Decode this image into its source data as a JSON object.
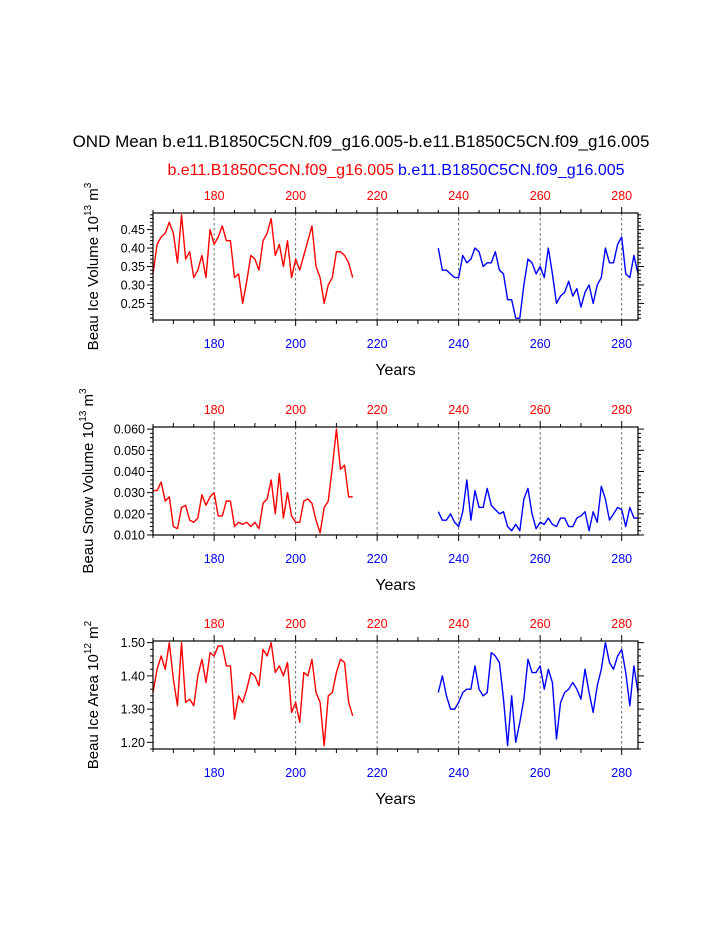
{
  "title": "OND Mean b.e11.B1850C5CN.f09_g16.005-b.e11.B1850C5CN.f09_g16.005",
  "legend": {
    "red_case": "b.e11.B1850C5CN.f09_g16.005",
    "blue_case": "b.e11.B1850C5CN.f09_g16.005"
  },
  "colors": {
    "red": "#ff0000",
    "blue": "#0000ff",
    "grid": "#555555",
    "axis": "#000000"
  },
  "chart_data": [
    {
      "type": "line",
      "id": "ice-volume",
      "ylabel": "Beau Ice Volume 10",
      "ylabel_exp": "13",
      "ylabel_unit": " m",
      "ylabel_unit_exp": "3",
      "xlabel": "Years",
      "xlim": [
        165,
        284
      ],
      "ylim": [
        0.205,
        0.495
      ],
      "yticks": [
        0.25,
        0.3,
        0.35,
        0.4,
        0.45
      ],
      "ytick_labels": [
        "0.25",
        "0.30",
        "0.35",
        "0.40",
        "0.45"
      ],
      "yminor": 0.01,
      "xticks": [
        180,
        200,
        220,
        240,
        260,
        280
      ],
      "xtick_labels": [
        "180",
        "200",
        "220",
        "240",
        "260",
        "280"
      ],
      "xminor": 5,
      "vlines": [
        180,
        200,
        220,
        240,
        260,
        280
      ],
      "series": [
        {
          "name": "b.e11.B1850C5CN.f09_g16.005 (yrs 165-214)",
          "color": "red",
          "x_start": 165,
          "values": [
            0.33,
            0.41,
            0.43,
            0.44,
            0.47,
            0.44,
            0.36,
            0.49,
            0.37,
            0.39,
            0.32,
            0.34,
            0.38,
            0.32,
            0.45,
            0.41,
            0.43,
            0.46,
            0.42,
            0.42,
            0.32,
            0.33,
            0.25,
            0.31,
            0.38,
            0.37,
            0.34,
            0.42,
            0.44,
            0.48,
            0.38,
            0.41,
            0.35,
            0.42,
            0.32,
            0.37,
            0.34,
            0.38,
            0.42,
            0.46,
            0.35,
            0.32,
            0.25,
            0.3,
            0.32,
            0.39,
            0.39,
            0.38,
            0.36,
            0.32
          ]
        },
        {
          "name": "b.e11.B1850C5CN.f09_g16.005 (yrs 235-284)",
          "color": "blue",
          "x_start": 235,
          "values": [
            0.4,
            0.34,
            0.34,
            0.33,
            0.32,
            0.32,
            0.38,
            0.36,
            0.37,
            0.4,
            0.39,
            0.35,
            0.36,
            0.36,
            0.39,
            0.34,
            0.33,
            0.26,
            0.26,
            0.21,
            0.21,
            0.3,
            0.37,
            0.36,
            0.33,
            0.35,
            0.32,
            0.4,
            0.33,
            0.25,
            0.27,
            0.28,
            0.31,
            0.27,
            0.29,
            0.24,
            0.28,
            0.3,
            0.25,
            0.3,
            0.32,
            0.4,
            0.36,
            0.36,
            0.41,
            0.43,
            0.33,
            0.32,
            0.38,
            0.33
          ]
        }
      ]
    },
    {
      "type": "line",
      "id": "snow-volume",
      "ylabel": "Beau Snow Volume 10",
      "ylabel_exp": "13",
      "ylabel_unit": " m",
      "ylabel_unit_exp": "3",
      "xlabel": "Years",
      "xlim": [
        165,
        284
      ],
      "ylim": [
        0.01,
        0.061
      ],
      "yticks": [
        0.01,
        0.02,
        0.03,
        0.04,
        0.05,
        0.06
      ],
      "ytick_labels": [
        "0.010",
        "0.020",
        "0.030",
        "0.040",
        "0.050",
        "0.060"
      ],
      "yminor": 0.002,
      "xticks": [
        180,
        200,
        220,
        240,
        260,
        280
      ],
      "xtick_labels": [
        "180",
        "200",
        "220",
        "240",
        "260",
        "280"
      ],
      "xminor": 5,
      "vlines": [
        180,
        200,
        220,
        240,
        260,
        280
      ],
      "series": [
        {
          "name": "b.e11.B1850C5CN.f09_g16.005 (yrs 165-214)",
          "color": "red",
          "x_start": 165,
          "values": [
            0.031,
            0.031,
            0.035,
            0.026,
            0.028,
            0.014,
            0.013,
            0.023,
            0.024,
            0.017,
            0.016,
            0.018,
            0.029,
            0.024,
            0.028,
            0.03,
            0.019,
            0.019,
            0.026,
            0.026,
            0.014,
            0.016,
            0.015,
            0.016,
            0.014,
            0.016,
            0.013,
            0.025,
            0.027,
            0.036,
            0.02,
            0.039,
            0.018,
            0.03,
            0.019,
            0.016,
            0.016,
            0.026,
            0.027,
            0.025,
            0.017,
            0.011,
            0.023,
            0.026,
            0.042,
            0.06,
            0.041,
            0.043,
            0.028,
            0.028
          ]
        },
        {
          "name": "b.e11.B1850C5CN.f09_g16.005 (yrs 235-284)",
          "color": "blue",
          "x_start": 235,
          "values": [
            0.021,
            0.017,
            0.017,
            0.02,
            0.016,
            0.014,
            0.021,
            0.036,
            0.017,
            0.031,
            0.023,
            0.023,
            0.032,
            0.024,
            0.022,
            0.02,
            0.021,
            0.014,
            0.012,
            0.015,
            0.012,
            0.027,
            0.032,
            0.02,
            0.013,
            0.016,
            0.015,
            0.018,
            0.015,
            0.014,
            0.018,
            0.018,
            0.014,
            0.014,
            0.018,
            0.019,
            0.021,
            0.012,
            0.021,
            0.016,
            0.033,
            0.027,
            0.017,
            0.02,
            0.023,
            0.022,
            0.014,
            0.023,
            0.018,
            0.018
          ]
        }
      ]
    },
    {
      "type": "line",
      "id": "ice-area",
      "ylabel": "Beau Ice Area 10",
      "ylabel_exp": "12",
      "ylabel_unit": " m",
      "ylabel_unit_exp": "2",
      "xlabel": "Years",
      "xlim": [
        165,
        284
      ],
      "ylim": [
        1.18,
        1.505
      ],
      "yticks": [
        1.2,
        1.3,
        1.4,
        1.5
      ],
      "ytick_labels": [
        "1.20",
        "1.30",
        "1.40",
        "1.50"
      ],
      "yminor": 0.02,
      "xticks": [
        180,
        200,
        220,
        240,
        260,
        280
      ],
      "xtick_labels": [
        "180",
        "200",
        "220",
        "240",
        "260",
        "280"
      ],
      "xminor": 5,
      "vlines": [
        180,
        200,
        220,
        240,
        260,
        280
      ],
      "series": [
        {
          "name": "b.e11.B1850C5CN.f09_g16.005 (yrs 165-214)",
          "color": "red",
          "x_start": 165,
          "values": [
            1.35,
            1.42,
            1.46,
            1.42,
            1.5,
            1.39,
            1.31,
            1.5,
            1.32,
            1.33,
            1.31,
            1.4,
            1.45,
            1.38,
            1.47,
            1.46,
            1.49,
            1.49,
            1.43,
            1.43,
            1.27,
            1.34,
            1.32,
            1.36,
            1.41,
            1.4,
            1.37,
            1.48,
            1.46,
            1.5,
            1.41,
            1.43,
            1.4,
            1.44,
            1.29,
            1.32,
            1.26,
            1.41,
            1.4,
            1.45,
            1.35,
            1.32,
            1.19,
            1.34,
            1.35,
            1.41,
            1.45,
            1.44,
            1.32,
            1.28
          ]
        },
        {
          "name": "b.e11.B1850C5CN.f09_g16.005 (yrs 235-284)",
          "color": "blue",
          "x_start": 235,
          "values": [
            1.35,
            1.4,
            1.34,
            1.3,
            1.3,
            1.32,
            1.35,
            1.36,
            1.36,
            1.43,
            1.36,
            1.34,
            1.35,
            1.47,
            1.46,
            1.44,
            1.33,
            1.19,
            1.34,
            1.2,
            1.26,
            1.33,
            1.45,
            1.41,
            1.41,
            1.43,
            1.36,
            1.42,
            1.38,
            1.21,
            1.32,
            1.35,
            1.36,
            1.38,
            1.36,
            1.33,
            1.42,
            1.35,
            1.29,
            1.37,
            1.42,
            1.5,
            1.44,
            1.42,
            1.46,
            1.48,
            1.41,
            1.31,
            1.43,
            1.35
          ]
        }
      ]
    }
  ]
}
